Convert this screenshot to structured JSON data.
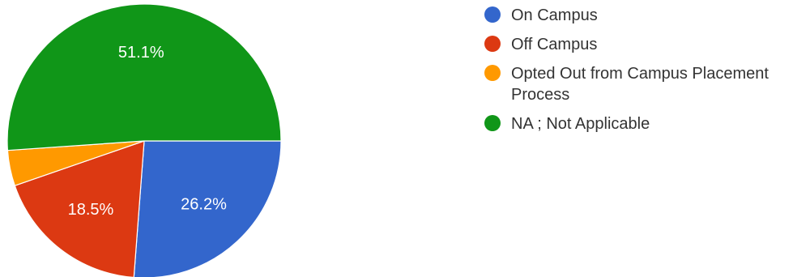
{
  "chart_data": {
    "type": "pie",
    "title": "",
    "slices": [
      {
        "label": "On Campus",
        "value": 26.2,
        "color": "#3366cc",
        "display": "26.2%"
      },
      {
        "label": "Off Campus",
        "value": 18.5,
        "color": "#dc3912",
        "display": "18.5%"
      },
      {
        "label": "Opted Out from Campus Placement Process",
        "value": 4.2,
        "color": "#ff9900",
        "display": ""
      },
      {
        "label": "NA ; Not Applicable",
        "value": 51.1,
        "color": "#109618",
        "display": "51.1%"
      }
    ],
    "start_angle_deg": 90,
    "direction": "clockwise",
    "legend_position": "right"
  }
}
